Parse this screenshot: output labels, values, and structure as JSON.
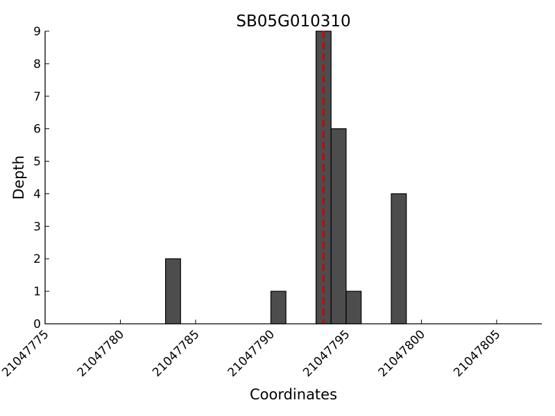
{
  "chart_data": {
    "type": "bar",
    "title": "SB05G010310",
    "xlabel": "Coordinates",
    "ylabel": "Depth",
    "xlim": [
      21047775,
      21047808
    ],
    "ylim": [
      0,
      9
    ],
    "x_ticks": [
      21047775,
      21047780,
      21047785,
      21047790,
      21047795,
      21047800,
      21047805
    ],
    "y_ticks": [
      0,
      1,
      2,
      3,
      4,
      5,
      6,
      7,
      8,
      9
    ],
    "bars": [
      {
        "x": 21047783,
        "value": 2
      },
      {
        "x": 21047790,
        "value": 1
      },
      {
        "x": 21047793,
        "value": 9
      },
      {
        "x": 21047794,
        "value": 6
      },
      {
        "x": 21047795,
        "value": 1
      },
      {
        "x": 21047798,
        "value": 4
      }
    ],
    "bar_width": 1,
    "reference_line": {
      "x": 21047793.5,
      "color": "#cc0000",
      "style": "dashed"
    },
    "bar_color": "#4d4d4d",
    "grid": false,
    "legend": "none"
  }
}
